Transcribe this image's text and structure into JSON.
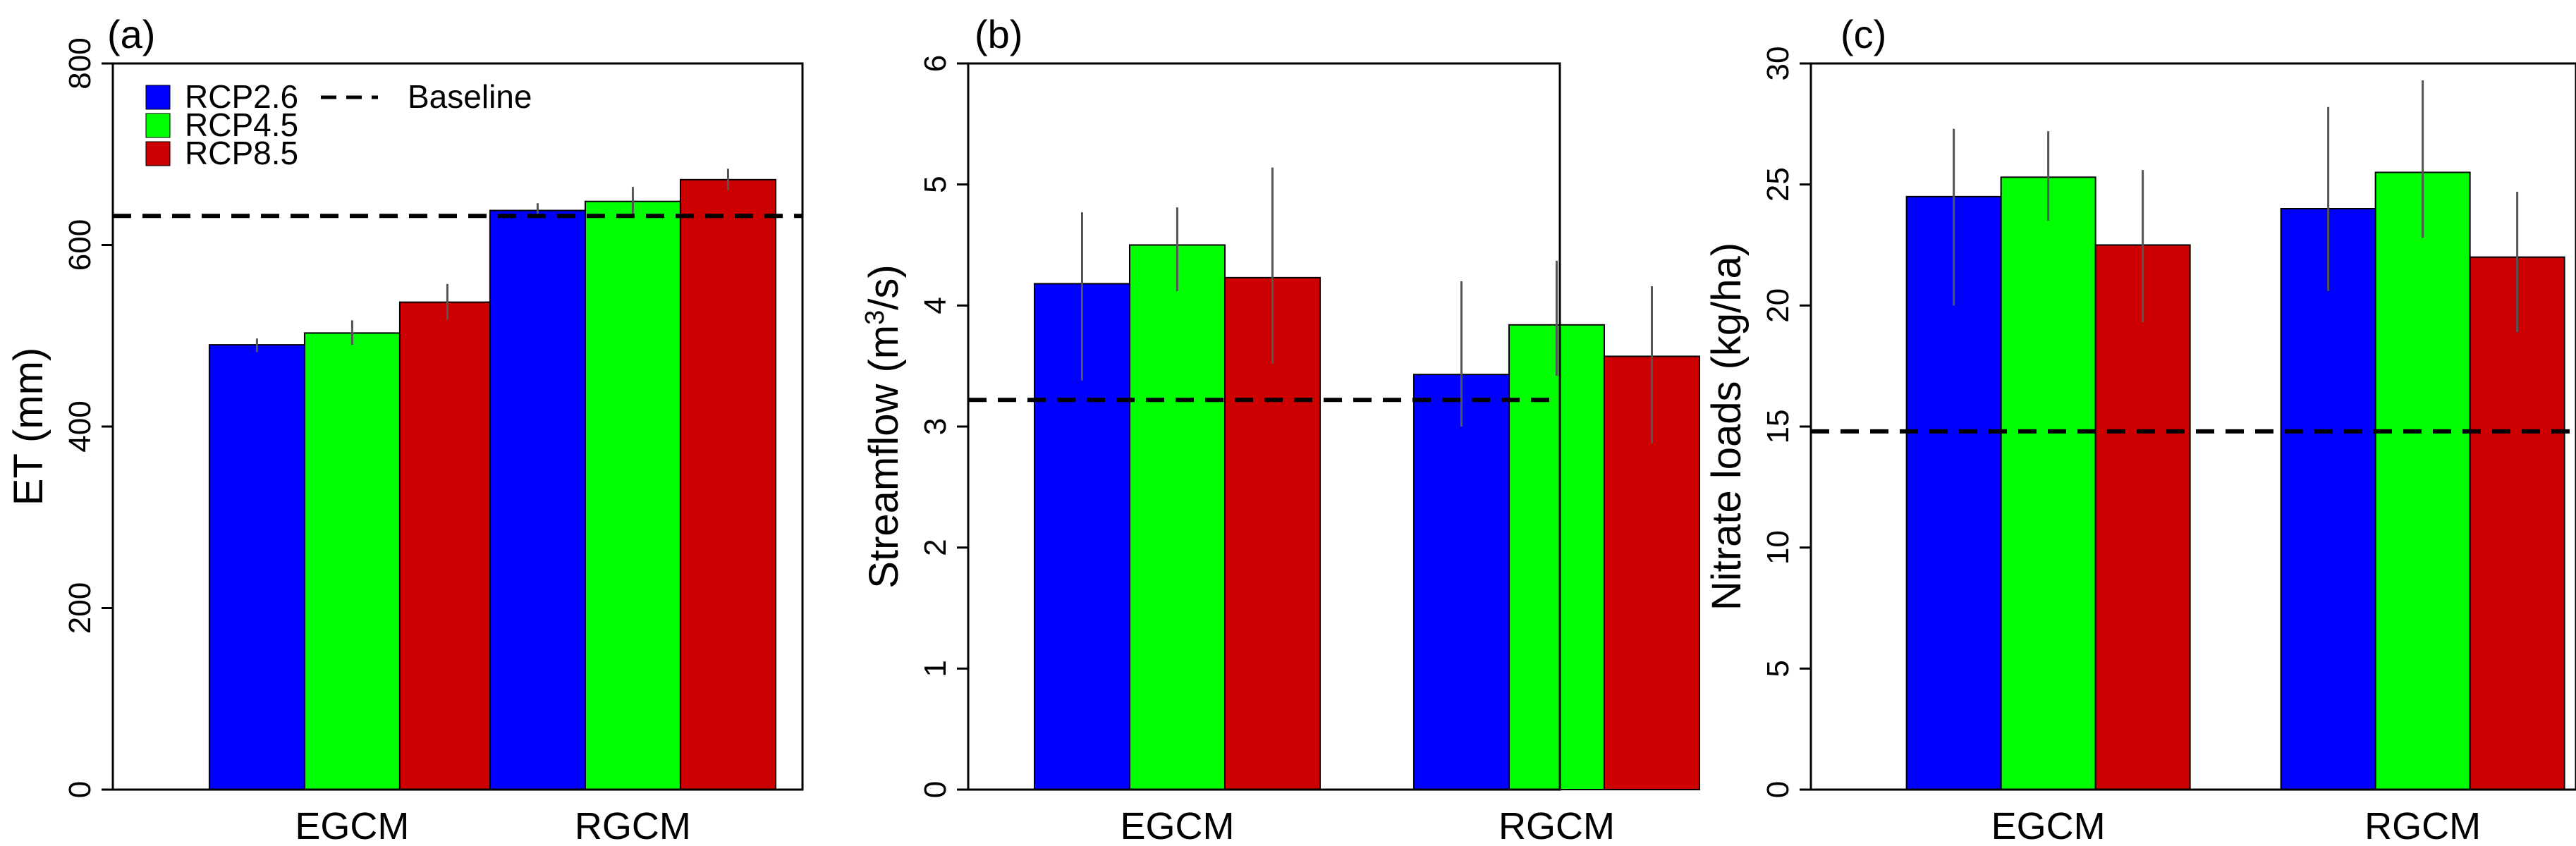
{
  "figure": {
    "colors": {
      "RCP2.6": "#0000ff",
      "RCP4.5": "#00ff00",
      "RCP8.5": "#cc0000",
      "baseline": "#000000"
    }
  },
  "legend": {
    "entries": [
      {
        "label": "RCP2.6",
        "color": "#0000ff"
      },
      {
        "label": "RCP4.5",
        "color": "#00ff00"
      },
      {
        "label": "RCP8.5",
        "color": "#cc0000"
      }
    ],
    "baseline_label": "Baseline"
  },
  "chart_data": [
    {
      "type": "bar",
      "panel": "(a)",
      "title": "",
      "xlabel": "",
      "ylabel": "ET (mm)",
      "ylabel_sup": "",
      "ylabel_tail": "",
      "categories": [
        "EGCM",
        "RGCM"
      ],
      "ylim": [
        0,
        800
      ],
      "yticks": [
        "0",
        "200",
        "400",
        "600",
        "800"
      ],
      "ytick_values": [
        0,
        200,
        400,
        600,
        800
      ],
      "baseline": 632,
      "series": [
        {
          "name": "RCP2.6",
          "values": [
            490,
            638
          ],
          "errors": [
            [
              482,
              497
            ],
            [
              630,
              646
            ]
          ]
        },
        {
          "name": "RCP4.5",
          "values": [
            503,
            648
          ],
          "errors": [
            [
              490,
              517
            ],
            [
              633,
              664
            ]
          ]
        },
        {
          "name": "RCP8.5",
          "values": [
            537,
            672
          ],
          "errors": [
            [
              518,
              557
            ],
            [
              660,
              684
            ]
          ]
        }
      ],
      "legend": "top-left"
    },
    {
      "type": "bar",
      "panel": "(b)",
      "title": "",
      "xlabel": "",
      "ylabel": "Streamflow  (m",
      "ylabel_sup": "3",
      "ylabel_tail": "/s)",
      "categories": [
        "EGCM",
        "RGCM"
      ],
      "ylim": [
        0,
        6
      ],
      "yticks": [
        "0",
        "1",
        "2",
        "3",
        "4",
        "5",
        "6"
      ],
      "ytick_values": [
        0,
        1,
        2,
        3,
        4,
        5,
        6
      ],
      "baseline": 3.22,
      "series": [
        {
          "name": "RCP2.6",
          "values": [
            4.18,
            3.43
          ],
          "errors": [
            [
              3.38,
              4.77
            ],
            [
              3.0,
              4.2
            ]
          ]
        },
        {
          "name": "RCP4.5",
          "values": [
            4.5,
            3.84
          ],
          "errors": [
            [
              4.12,
              4.81
            ],
            [
              3.42,
              4.37
            ]
          ]
        },
        {
          "name": "RCP8.5",
          "values": [
            4.23,
            3.58
          ],
          "errors": [
            [
              3.52,
              5.14
            ],
            [
              2.86,
              4.16
            ]
          ]
        }
      ]
    },
    {
      "type": "bar",
      "panel": "(c)",
      "title": "",
      "xlabel": "",
      "ylabel": "Nitrate loads  (kg/ha)",
      "ylabel_sup": "",
      "ylabel_tail": "",
      "categories": [
        "EGCM",
        "RGCM"
      ],
      "ylim": [
        0,
        30
      ],
      "yticks": [
        "0",
        "5",
        "10",
        "15",
        "20",
        "25",
        "30"
      ],
      "ytick_values": [
        0,
        5,
        10,
        15,
        20,
        25,
        30
      ],
      "baseline": 14.8,
      "series": [
        {
          "name": "RCP2.6",
          "values": [
            24.5,
            24.0
          ],
          "errors": [
            [
              20.0,
              27.3
            ],
            [
              20.6,
              28.2
            ]
          ]
        },
        {
          "name": "RCP4.5",
          "values": [
            25.3,
            25.5
          ],
          "errors": [
            [
              23.5,
              27.2
            ],
            [
              22.8,
              29.3
            ]
          ]
        },
        {
          "name": "RCP8.5",
          "values": [
            22.5,
            22.0
          ],
          "errors": [
            [
              19.3,
              25.6
            ],
            [
              18.9,
              24.7
            ]
          ]
        }
      ]
    }
  ]
}
